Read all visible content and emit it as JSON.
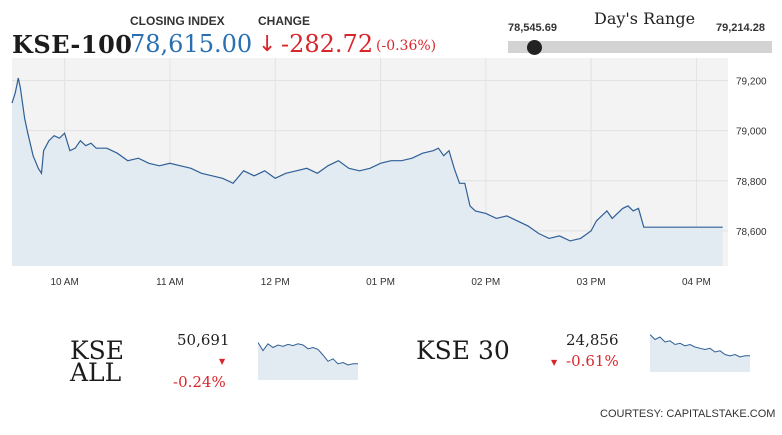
{
  "header": {
    "index_name": "KSE-100",
    "closing_label": "CLOSING INDEX",
    "closing_value": "78,615.00",
    "change_label": "CHANGE",
    "change_arrow": "↓",
    "change_value": "-282.72",
    "change_pct": "(-0.36%)"
  },
  "range": {
    "title": "Day's Range",
    "low": "78,545.69",
    "high": "79,214.28",
    "position": 0.1
  },
  "colors": {
    "line": "#2f5f96",
    "fill": "#e3ebf2",
    "negative": "#d9262c",
    "accent_value": "#2a6fb0"
  },
  "mini": {
    "kse_all": {
      "name_line1": "KSE",
      "name_line2": "ALL",
      "value": "50,691",
      "pct": "-0.24%",
      "tri": "▼"
    },
    "kse_30": {
      "name": "KSE 30",
      "value": "24,856",
      "pct": "-0.61%",
      "tri": "▼"
    }
  },
  "courtesy": "COURTESY: CAPITALSTAKE.COM",
  "chart_data": {
    "type": "area",
    "xlabel": "",
    "ylabel": "",
    "x_ticks": [
      "10 AM",
      "11 AM",
      "12 PM",
      "01 PM",
      "02 PM",
      "03 PM",
      "04 PM"
    ],
    "y_ticks": [
      "79,200",
      "79,000",
      "78,800",
      "78,600"
    ],
    "y_tick_values": [
      79200,
      79000,
      78800,
      78600
    ],
    "xlim": [
      9.5,
      16.3
    ],
    "ylim": [
      78460,
      79290
    ],
    "grid": true,
    "x": [
      9.5,
      9.53,
      9.56,
      9.58,
      9.62,
      9.65,
      9.7,
      9.75,
      9.78,
      9.8,
      9.85,
      9.9,
      9.95,
      10.0,
      10.05,
      10.1,
      10.15,
      10.2,
      10.25,
      10.3,
      10.4,
      10.5,
      10.6,
      10.7,
      10.8,
      10.9,
      11.0,
      11.1,
      11.2,
      11.3,
      11.4,
      11.5,
      11.6,
      11.7,
      11.8,
      11.9,
      12.0,
      12.1,
      12.2,
      12.3,
      12.4,
      12.5,
      12.6,
      12.7,
      12.8,
      12.9,
      13.0,
      13.1,
      13.2,
      13.3,
      13.4,
      13.5,
      13.55,
      13.6,
      13.65,
      13.7,
      13.75,
      13.8,
      13.85,
      13.9,
      14.0,
      14.1,
      14.2,
      14.3,
      14.4,
      14.5,
      14.6,
      14.7,
      14.8,
      14.9,
      15.0,
      15.05,
      15.1,
      15.15,
      15.2,
      15.3,
      15.35,
      15.4,
      15.45,
      15.5,
      16.25
    ],
    "values": [
      79110,
      79150,
      79210,
      79170,
      79050,
      78990,
      78900,
      78850,
      78830,
      78920,
      78960,
      78980,
      78970,
      78990,
      78920,
      78930,
      78960,
      78940,
      78950,
      78930,
      78930,
      78910,
      78880,
      78890,
      78870,
      78860,
      78870,
      78860,
      78850,
      78830,
      78820,
      78810,
      78790,
      78840,
      78820,
      78840,
      78810,
      78830,
      78840,
      78850,
      78830,
      78860,
      78880,
      78850,
      78840,
      78850,
      78870,
      78880,
      78880,
      78890,
      78910,
      78920,
      78930,
      78900,
      78920,
      78850,
      78790,
      78790,
      78700,
      78680,
      78670,
      78650,
      78660,
      78640,
      78620,
      78590,
      78570,
      78580,
      78560,
      78570,
      78600,
      78640,
      78660,
      78680,
      78650,
      78690,
      78700,
      78680,
      78690,
      78615,
      78615
    ]
  },
  "mini_charts": {
    "kse_all": {
      "type": "area",
      "values": [
        60,
        47,
        58,
        52,
        56,
        54,
        57,
        55,
        58,
        56,
        50,
        52,
        49,
        40,
        30,
        34,
        26,
        28,
        24,
        26,
        26
      ]
    },
    "kse_30": {
      "type": "area",
      "values": [
        60,
        52,
        56,
        48,
        50,
        44,
        46,
        42,
        44,
        40,
        38,
        36,
        38,
        32,
        34,
        28,
        26,
        28,
        24,
        26,
        26
      ]
    }
  }
}
